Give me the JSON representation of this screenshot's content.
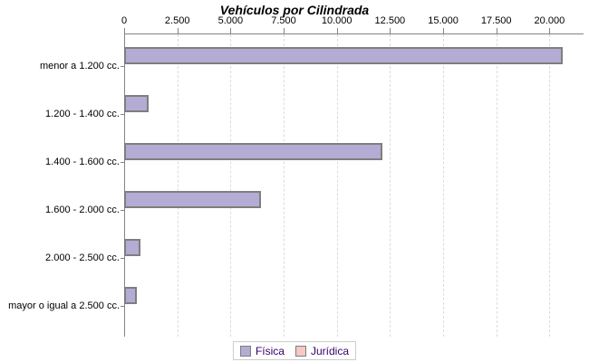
{
  "title": "Vehículos por Cilindrada",
  "colors": {
    "fisica_fill": "#b4acd4",
    "juridica_fill": "#f8c8c6",
    "bar_border": "#7e7e7e",
    "axis": "#848484",
    "gridline": "#dcdcdc",
    "legend_text": "#330066",
    "label_text": "#000000",
    "background": "#ffffff"
  },
  "legend": {
    "items": [
      {
        "label": "Física",
        "color": "#b4acd4"
      },
      {
        "label": "Jurídica",
        "color": "#f8c8c6"
      }
    ]
  },
  "chart_data": {
    "type": "bar",
    "orientation": "horizontal",
    "title": "Vehículos por Cilindrada",
    "categories": [
      "menor a 1.200 cc.",
      "1.200 - 1.400 cc.",
      "1.400 - 1.600 cc.",
      "1.600 - 2.000 cc.",
      "2.000 - 2.500 cc.",
      "mayor o igual a 2.500 cc."
    ],
    "series": [
      {
        "name": "Física",
        "values": [
          20550,
          1050,
          12050,
          6350,
          680,
          510
        ]
      },
      {
        "name": "Jurídica",
        "values": [
          0,
          0,
          0,
          0,
          0,
          0
        ]
      }
    ],
    "x_ticks": [
      "0",
      "2.500",
      "5.000",
      "7.500",
      "10.000",
      "12.500",
      "15.000",
      "17.500",
      "20.000"
    ],
    "x_tick_values": [
      0,
      2500,
      5000,
      7500,
      10000,
      12500,
      15000,
      17500,
      20000
    ],
    "xlim": [
      0,
      21560
    ],
    "grid": "dashed-vertical",
    "legend_position": "bottom"
  }
}
